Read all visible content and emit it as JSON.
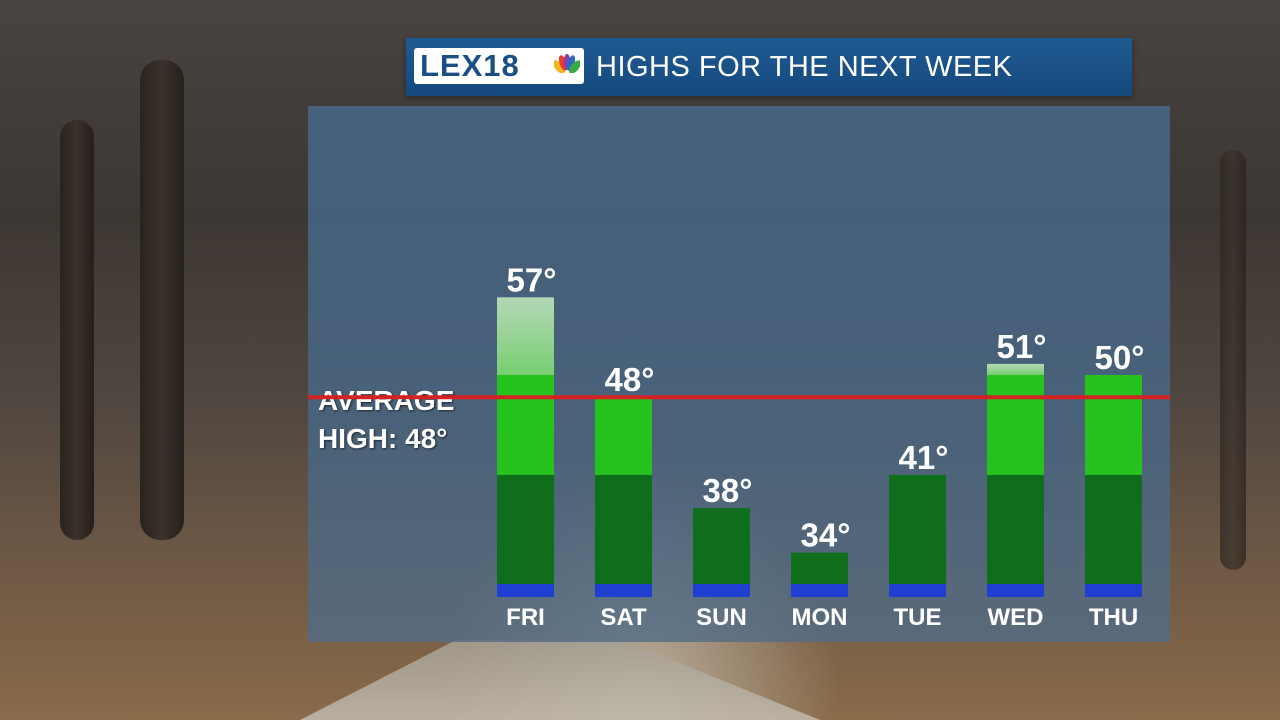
{
  "header": {
    "logo_text": "LEX18",
    "title": "HIGHS FOR THE NEXT WEEK"
  },
  "average": {
    "label_line1": "AVERAGE",
    "label_line2": "HIGH: 48°",
    "value": 48,
    "line_color": "#d42222"
  },
  "colors": {
    "bar_dark": "#0f6e1c",
    "bar_mid": "#26c21e",
    "bar_light": "#a8e2a0",
    "bar_base": "#1f3fd0",
    "banner": "#1a5289"
  },
  "chart_data": {
    "type": "bar",
    "title": "HIGHS FOR THE NEXT WEEK",
    "categories": [
      "FRI",
      "SAT",
      "SUN",
      "MON",
      "TUE",
      "WED",
      "THU"
    ],
    "values": [
      57,
      48,
      38,
      34,
      41,
      51,
      50
    ],
    "value_labels": [
      "57°",
      "48°",
      "38°",
      "34°",
      "41°",
      "51°",
      "50°"
    ],
    "reference_line": 48,
    "ylim": [
      30,
      60
    ],
    "grid": false,
    "legend": "none"
  }
}
